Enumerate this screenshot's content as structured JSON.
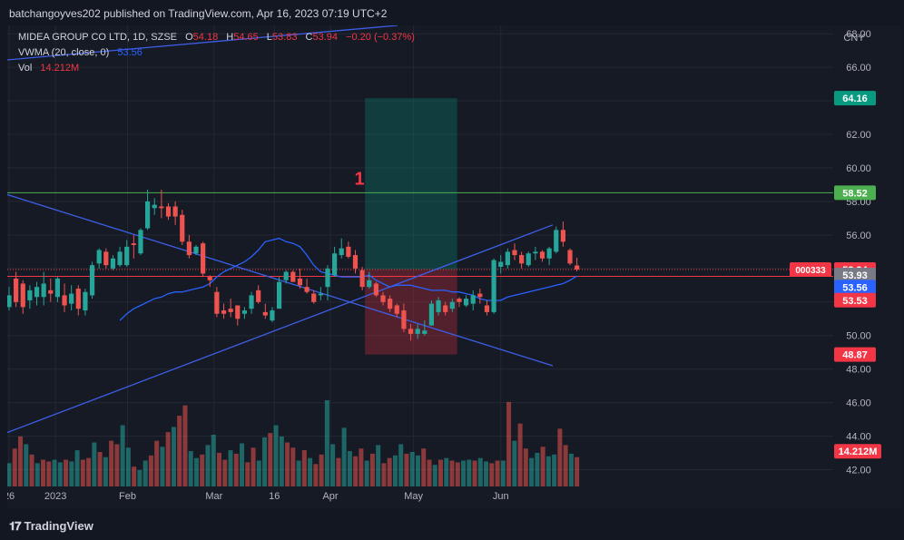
{
  "header": {
    "published": "batchangoyves202 published on TradingView.com, Apr 16, 2023 07:19 UTC+2"
  },
  "legend": {
    "symbol": "MIDEA GROUP CO LTD, 1D, SZSE",
    "o_label": "O",
    "o_value": "54.18",
    "h_label": "H",
    "h_value": "54.65",
    "l_label": "L",
    "l_value": "53.83",
    "c_label": "C",
    "c_value": "53.94",
    "change": "−0.20 (−0.37%)",
    "vwma_label": "VWMA (20, close, 0)",
    "vwma_value": "53.56",
    "vol_label": "Vol",
    "vol_value": "14.212M"
  },
  "footer": {
    "brand": "TradingView"
  },
  "colors": {
    "up": "#26a69a",
    "down": "#ef5350",
    "vwma": "#2962ff",
    "trendline": "#3d5ee6",
    "support": "#4caf50",
    "bg": "#161a25"
  },
  "chart_data": {
    "type": "candlestick",
    "currency": "CNY",
    "y_range": [
      41.0,
      68.5
    ],
    "price_ticks": [
      "42.00",
      "44.00",
      "46.00",
      "48.00",
      "50.00",
      "52.00",
      "54.00",
      "56.00",
      "58.00",
      "60.00",
      "62.00",
      "64.00",
      "66.00",
      "68.00"
    ],
    "x_ticks": [
      {
        "label": "26",
        "index": 0
      },
      {
        "label": "2023",
        "index": 6.7
      },
      {
        "label": "Feb",
        "index": 17.1
      },
      {
        "label": "Mar",
        "index": 29.6
      },
      {
        "label": "Mar 16",
        "label_short": "16",
        "index": 38.3
      },
      {
        "label": "Apr",
        "index": 46.4
      },
      {
        "label": "May",
        "index": 58.4
      },
      {
        "label": "Jun",
        "index": 71
      }
    ],
    "ohlc": [
      {
        "o": 51.7,
        "h": 52.9,
        "l": 51.5,
        "c": 52.4
      },
      {
        "o": 53.4,
        "h": 53.8,
        "l": 51.7,
        "c": 52.0
      },
      {
        "o": 53.1,
        "h": 53.3,
        "l": 51.3,
        "c": 51.7
      },
      {
        "o": 52.1,
        "h": 53.0,
        "l": 51.6,
        "c": 52.7
      },
      {
        "o": 52.3,
        "h": 53.2,
        "l": 51.8,
        "c": 52.9
      },
      {
        "o": 52.3,
        "h": 53.8,
        "l": 51.8,
        "c": 53.1
      },
      {
        "o": 52.7,
        "h": 53.4,
        "l": 52.0,
        "c": 52.5
      },
      {
        "o": 52.3,
        "h": 53.5,
        "l": 52.0,
        "c": 53.4
      },
      {
        "o": 52.4,
        "h": 53.1,
        "l": 51.4,
        "c": 51.8
      },
      {
        "o": 51.9,
        "h": 53.0,
        "l": 51.5,
        "c": 52.5
      },
      {
        "o": 52.8,
        "h": 53.0,
        "l": 51.2,
        "c": 51.6
      },
      {
        "o": 51.5,
        "h": 52.8,
        "l": 51.2,
        "c": 52.6
      },
      {
        "o": 52.4,
        "h": 54.4,
        "l": 52.2,
        "c": 54.2
      },
      {
        "o": 54.3,
        "h": 55.2,
        "l": 54.0,
        "c": 55.1
      },
      {
        "o": 55.0,
        "h": 55.2,
        "l": 54.0,
        "c": 54.2
      },
      {
        "o": 54.0,
        "h": 54.8,
        "l": 53.9,
        "c": 54.6
      },
      {
        "o": 54.2,
        "h": 55.3,
        "l": 54.1,
        "c": 55.0
      },
      {
        "o": 54.2,
        "h": 55.7,
        "l": 54.1,
        "c": 55.3
      },
      {
        "o": 55.5,
        "h": 56.0,
        "l": 54.6,
        "c": 55.4
      },
      {
        "o": 54.9,
        "h": 56.4,
        "l": 54.8,
        "c": 56.3
      },
      {
        "o": 56.4,
        "h": 58.7,
        "l": 56.3,
        "c": 58.0
      },
      {
        "o": 57.6,
        "h": 58.2,
        "l": 57.2,
        "c": 57.8
      },
      {
        "o": 57.7,
        "h": 58.7,
        "l": 57.0,
        "c": 57.6
      },
      {
        "o": 57.7,
        "h": 57.9,
        "l": 56.9,
        "c": 57.1
      },
      {
        "o": 57.7,
        "h": 58.0,
        "l": 56.6,
        "c": 57.1
      },
      {
        "o": 57.2,
        "h": 57.5,
        "l": 55.4,
        "c": 55.6
      },
      {
        "o": 55.6,
        "h": 56.0,
        "l": 54.6,
        "c": 54.8
      },
      {
        "o": 54.9,
        "h": 55.4,
        "l": 54.8,
        "c": 55.3
      },
      {
        "o": 55.5,
        "h": 55.6,
        "l": 53.5,
        "c": 53.7
      },
      {
        "o": 53.5,
        "h": 53.6,
        "l": 52.9,
        "c": 53.3
      },
      {
        "o": 52.6,
        "h": 52.9,
        "l": 51.1,
        "c": 51.3
      },
      {
        "o": 51.5,
        "h": 51.9,
        "l": 51.0,
        "c": 51.3
      },
      {
        "o": 51.6,
        "h": 52.2,
        "l": 51.1,
        "c": 51.4
      },
      {
        "o": 51.8,
        "h": 51.8,
        "l": 50.6,
        "c": 51.0
      },
      {
        "o": 51.3,
        "h": 51.7,
        "l": 51.0,
        "c": 51.5
      },
      {
        "o": 51.6,
        "h": 52.6,
        "l": 51.3,
        "c": 52.4
      },
      {
        "o": 52.7,
        "h": 53.0,
        "l": 51.9,
        "c": 52.0
      },
      {
        "o": 51.4,
        "h": 51.9,
        "l": 51.0,
        "c": 51.2
      },
      {
        "o": 50.9,
        "h": 51.7,
        "l": 50.8,
        "c": 51.5
      },
      {
        "o": 51.6,
        "h": 53.5,
        "l": 51.6,
        "c": 53.2
      },
      {
        "o": 53.3,
        "h": 53.9,
        "l": 53.1,
        "c": 53.8
      },
      {
        "o": 53.8,
        "h": 53.9,
        "l": 53.2,
        "c": 53.2
      },
      {
        "o": 53.4,
        "h": 54.0,
        "l": 52.8,
        "c": 53.0
      },
      {
        "o": 52.9,
        "h": 53.4,
        "l": 52.5,
        "c": 52.6
      },
      {
        "o": 52.5,
        "h": 52.7,
        "l": 51.9,
        "c": 52.0
      },
      {
        "o": 52.4,
        "h": 52.9,
        "l": 52.1,
        "c": 52.5
      },
      {
        "o": 52.9,
        "h": 54.2,
        "l": 52.1,
        "c": 54.0
      },
      {
        "o": 53.6,
        "h": 55.3,
        "l": 53.5,
        "c": 54.9
      },
      {
        "o": 54.8,
        "h": 55.8,
        "l": 54.6,
        "c": 55.2
      },
      {
        "o": 55.3,
        "h": 55.6,
        "l": 54.6,
        "c": 54.7
      },
      {
        "o": 54.8,
        "h": 55.1,
        "l": 53.7,
        "c": 54.0
      },
      {
        "o": 53.9,
        "h": 54.1,
        "l": 52.7,
        "c": 52.9
      },
      {
        "o": 52.9,
        "h": 53.8,
        "l": 52.8,
        "c": 53.3
      },
      {
        "o": 53.1,
        "h": 53.2,
        "l": 52.3,
        "c": 52.4
      },
      {
        "o": 52.4,
        "h": 52.6,
        "l": 51.8,
        "c": 52.0
      },
      {
        "o": 52.2,
        "h": 52.4,
        "l": 51.4,
        "c": 51.6
      },
      {
        "o": 51.8,
        "h": 51.9,
        "l": 51.1,
        "c": 51.3
      },
      {
        "o": 51.5,
        "h": 51.9,
        "l": 50.2,
        "c": 50.4
      },
      {
        "o": 50.4,
        "h": 50.7,
        "l": 49.7,
        "c": 50.1
      },
      {
        "o": 50.1,
        "h": 50.7,
        "l": 49.8,
        "c": 50.4
      },
      {
        "o": 50.1,
        "h": 50.9,
        "l": 50.0,
        "c": 50.3
      },
      {
        "o": 50.6,
        "h": 52.1,
        "l": 50.6,
        "c": 51.9
      },
      {
        "o": 51.4,
        "h": 52.3,
        "l": 51.2,
        "c": 52.1
      },
      {
        "o": 51.8,
        "h": 52.0,
        "l": 51.2,
        "c": 51.4
      },
      {
        "o": 51.6,
        "h": 52.2,
        "l": 51.4,
        "c": 52.0
      },
      {
        "o": 52.2,
        "h": 52.3,
        "l": 51.7,
        "c": 52.0
      },
      {
        "o": 51.8,
        "h": 52.4,
        "l": 51.7,
        "c": 52.2
      },
      {
        "o": 51.9,
        "h": 52.7,
        "l": 51.5,
        "c": 52.4
      },
      {
        "o": 52.5,
        "h": 52.8,
        "l": 51.9,
        "c": 52.3
      },
      {
        "o": 51.8,
        "h": 52.1,
        "l": 51.2,
        "c": 51.4
      },
      {
        "o": 51.4,
        "h": 54.6,
        "l": 51.3,
        "c": 54.5
      },
      {
        "o": 54.1,
        "h": 54.8,
        "l": 53.7,
        "c": 54.4
      },
      {
        "o": 54.2,
        "h": 55.2,
        "l": 54.0,
        "c": 55.0
      },
      {
        "o": 55.1,
        "h": 55.5,
        "l": 54.5,
        "c": 54.8
      },
      {
        "o": 54.8,
        "h": 55.0,
        "l": 54.0,
        "c": 54.3
      },
      {
        "o": 54.2,
        "h": 55.0,
        "l": 54.1,
        "c": 54.9
      },
      {
        "o": 54.9,
        "h": 55.3,
        "l": 54.5,
        "c": 55.0
      },
      {
        "o": 55.0,
        "h": 55.1,
        "l": 54.4,
        "c": 54.6
      },
      {
        "o": 54.6,
        "h": 55.3,
        "l": 54.2,
        "c": 55.2
      },
      {
        "o": 55.0,
        "h": 56.5,
        "l": 54.9,
        "c": 56.3
      },
      {
        "o": 56.3,
        "h": 56.8,
        "l": 55.3,
        "c": 55.6
      },
      {
        "o": 55.1,
        "h": 55.2,
        "l": 54.2,
        "c": 54.3
      },
      {
        "o": 54.18,
        "h": 54.65,
        "l": 53.83,
        "c": 53.94
      }
    ],
    "volume_rel": [
      0.27,
      0.44,
      0.58,
      0.49,
      0.37,
      0.27,
      0.31,
      0.29,
      0.31,
      0.28,
      0.31,
      0.29,
      0.42,
      0.31,
      0.33,
      0.51,
      0.4,
      0.34,
      0.53,
      0.49,
      0.71,
      0.45,
      0.23,
      0.19,
      0.3,
      0.36,
      0.53,
      0.46,
      0.63,
      0.69,
      0.82,
      0.94,
      0.41,
      0.33,
      0.37,
      0.48,
      0.6,
      0.39,
      0.31,
      0.42,
      0.38,
      0.5,
      0.28,
      0.45,
      0.3,
      0.57,
      0.62,
      0.71,
      0.58,
      0.51,
      0.45,
      0.3,
      0.42,
      0.33,
      0.26,
      0.37,
      1.0,
      0.49,
      0.33,
      0.68,
      0.41,
      0.35,
      0.44,
      0.3,
      0.38,
      0.48,
      0.27,
      0.33,
      0.36,
      0.49,
      0.38,
      0.4,
      0.36,
      0.44,
      0.31,
      0.25,
      0.31,
      0.33,
      0.3,
      0.28,
      0.3,
      0.31,
      0.3,
      0.33,
      0.29,
      0.27,
      0.3,
      0.3,
      0.98,
      0.53,
      0.73,
      0.44,
      0.33,
      0.39,
      0.46,
      0.35,
      0.37,
      0.67,
      0.48,
      0.38,
      0.34
    ],
    "vwma": [
      50.9,
      51.3,
      51.6,
      51.8,
      52.0,
      52.2,
      52.3,
      52.5,
      52.6,
      52.6,
      52.7,
      52.8,
      52.9,
      53.1,
      53.5,
      53.8,
      54.0,
      54.2,
      54.4,
      54.7,
      55.1,
      55.6,
      55.7,
      55.8,
      55.6,
      55.5,
      55.3,
      54.8,
      54.2,
      53.8,
      53.7,
      53.6,
      53.5,
      53.5,
      53.5,
      53.5,
      53.6,
      53.3,
      53.1,
      52.9,
      53.0,
      53.0,
      53.0,
      52.9,
      52.8,
      52.7,
      52.7,
      52.7,
      52.6,
      52.6,
      52.5,
      52.4,
      52.2,
      52.1,
      52.1,
      52.1,
      52.3,
      52.4,
      52.5,
      52.6,
      52.7,
      52.8,
      52.9,
      53.0,
      53.1,
      53.3,
      53.56
    ],
    "lines": [
      {
        "kind": "trendline",
        "p1": {
          "index": -1,
          "price": 58.5
        },
        "p2": {
          "index": 78.5,
          "price": 48.2
        }
      },
      {
        "kind": "trendline",
        "p1": {
          "index": -1,
          "price": 44.1
        },
        "p2": {
          "index": 78.5,
          "price": 56.6
        }
      },
      {
        "kind": "horizontal",
        "price": 58.52,
        "label": "58.52"
      },
      {
        "kind": "horizontal",
        "price": 53.53,
        "label": "53.53"
      }
    ],
    "position": {
      "entry": 53.94,
      "target": 64.16,
      "stop": 48.87,
      "from_index": 51.4,
      "to_index": 64.7
    },
    "annotation": {
      "text": "1",
      "index": 50.6,
      "price": 59.0
    },
    "price_labels": [
      {
        "text": "64.16",
        "price": 64.16,
        "color": "#089981"
      },
      {
        "text": "58.52",
        "price": 58.52,
        "color": "#4caf50"
      },
      {
        "text": "53.94",
        "price": 53.94,
        "color": "#f23645",
        "tag": "000333"
      },
      {
        "text": "53.93",
        "price": 53.61,
        "color": "#787b86"
      },
      {
        "text": "53.56",
        "price": 52.89,
        "color": "#2962ff"
      },
      {
        "text": "53.53",
        "price": 52.11,
        "color": "#f23645"
      },
      {
        "text": "48.87",
        "price": 48.87,
        "color": "#f23645"
      },
      {
        "text": "14.212M",
        "price": 43.1,
        "color": "#f23645"
      }
    ]
  }
}
